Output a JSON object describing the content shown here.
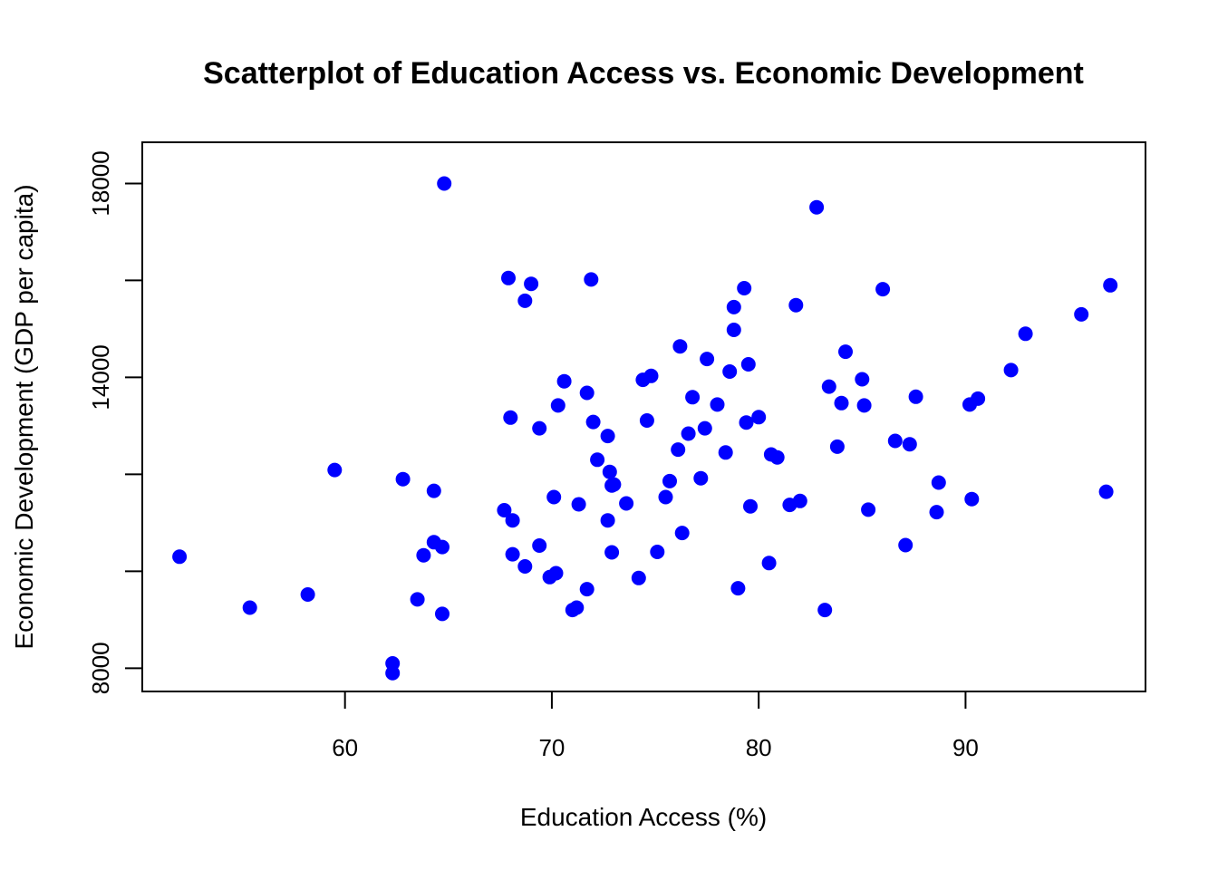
{
  "chart_data": {
    "type": "scatter",
    "title": "Scatterplot of Education Access vs. Economic Development",
    "xlabel": "Education Access (%)",
    "ylabel": "Economic Development (GDP per capita)",
    "xlim": [
      50.2,
      98.7
    ],
    "ylim": [
      7520,
      18850
    ],
    "xticks": [
      60,
      70,
      80,
      90
    ],
    "yticks": [
      8000,
      10000,
      12000,
      14000,
      16000,
      18000
    ],
    "ytick_labels": [
      "8000",
      "",
      "",
      "14000",
      "",
      "18000"
    ],
    "grid": false,
    "legend": "none",
    "point_color": "#0000ff",
    "points": [
      [
        52.0,
        10300
      ],
      [
        55.4,
        9250
      ],
      [
        58.2,
        9520
      ],
      [
        59.5,
        12090
      ],
      [
        62.3,
        8100
      ],
      [
        62.3,
        7900
      ],
      [
        62.8,
        11900
      ],
      [
        63.5,
        9420
      ],
      [
        63.8,
        10330
      ],
      [
        64.3,
        10600
      ],
      [
        64.3,
        11660
      ],
      [
        64.7,
        10500
      ],
      [
        64.8,
        18000
      ],
      [
        64.7,
        9120
      ],
      [
        67.7,
        11260
      ],
      [
        67.9,
        16050
      ],
      [
        68.0,
        13170
      ],
      [
        68.1,
        11050
      ],
      [
        68.1,
        10350
      ],
      [
        68.7,
        10100
      ],
      [
        68.7,
        15580
      ],
      [
        69.0,
        15930
      ],
      [
        69.4,
        12950
      ],
      [
        69.4,
        10530
      ],
      [
        69.9,
        9880
      ],
      [
        70.1,
        11530
      ],
      [
        70.2,
        9960
      ],
      [
        70.3,
        13420
      ],
      [
        70.6,
        13920
      ],
      [
        71.0,
        9200
      ],
      [
        71.2,
        9250
      ],
      [
        71.3,
        11380
      ],
      [
        71.7,
        9630
      ],
      [
        71.7,
        13680
      ],
      [
        71.9,
        16020
      ],
      [
        72.0,
        13080
      ],
      [
        72.2,
        12300
      ],
      [
        72.7,
        12790
      ],
      [
        72.7,
        11050
      ],
      [
        72.8,
        12050
      ],
      [
        72.9,
        11770
      ],
      [
        72.9,
        10390
      ],
      [
        73.0,
        11790
      ],
      [
        73.6,
        11400
      ],
      [
        74.2,
        9860
      ],
      [
        74.4,
        13950
      ],
      [
        74.6,
        13110
      ],
      [
        74.8,
        14030
      ],
      [
        75.1,
        10400
      ],
      [
        75.5,
        11530
      ],
      [
        75.7,
        11860
      ],
      [
        76.1,
        12510
      ],
      [
        76.2,
        14640
      ],
      [
        76.3,
        10790
      ],
      [
        76.6,
        12840
      ],
      [
        76.8,
        13590
      ],
      [
        77.2,
        11920
      ],
      [
        77.4,
        12950
      ],
      [
        77.5,
        14380
      ],
      [
        78.0,
        13440
      ],
      [
        78.4,
        12450
      ],
      [
        78.6,
        14120
      ],
      [
        78.8,
        14980
      ],
      [
        78.8,
        15450
      ],
      [
        79.0,
        9650
      ],
      [
        79.3,
        15840
      ],
      [
        79.4,
        13070
      ],
      [
        79.5,
        14270
      ],
      [
        79.6,
        11340
      ],
      [
        80.0,
        13180
      ],
      [
        80.5,
        10170
      ],
      [
        80.6,
        12410
      ],
      [
        80.9,
        12350
      ],
      [
        81.5,
        11370
      ],
      [
        81.8,
        15490
      ],
      [
        82.0,
        11450
      ],
      [
        82.8,
        17510
      ],
      [
        83.2,
        9200
      ],
      [
        83.4,
        13810
      ],
      [
        83.8,
        12570
      ],
      [
        84.0,
        13470
      ],
      [
        84.2,
        14530
      ],
      [
        85.0,
        13960
      ],
      [
        85.1,
        13420
      ],
      [
        85.3,
        11270
      ],
      [
        86.0,
        15820
      ],
      [
        86.6,
        12690
      ],
      [
        87.1,
        10540
      ],
      [
        87.3,
        12620
      ],
      [
        87.6,
        13600
      ],
      [
        88.6,
        11220
      ],
      [
        88.7,
        11830
      ],
      [
        90.2,
        13440
      ],
      [
        90.3,
        11490
      ],
      [
        90.6,
        13560
      ],
      [
        92.2,
        14150
      ],
      [
        92.9,
        14900
      ],
      [
        95.6,
        15300
      ],
      [
        96.8,
        11640
      ],
      [
        97.0,
        15900
      ]
    ]
  }
}
